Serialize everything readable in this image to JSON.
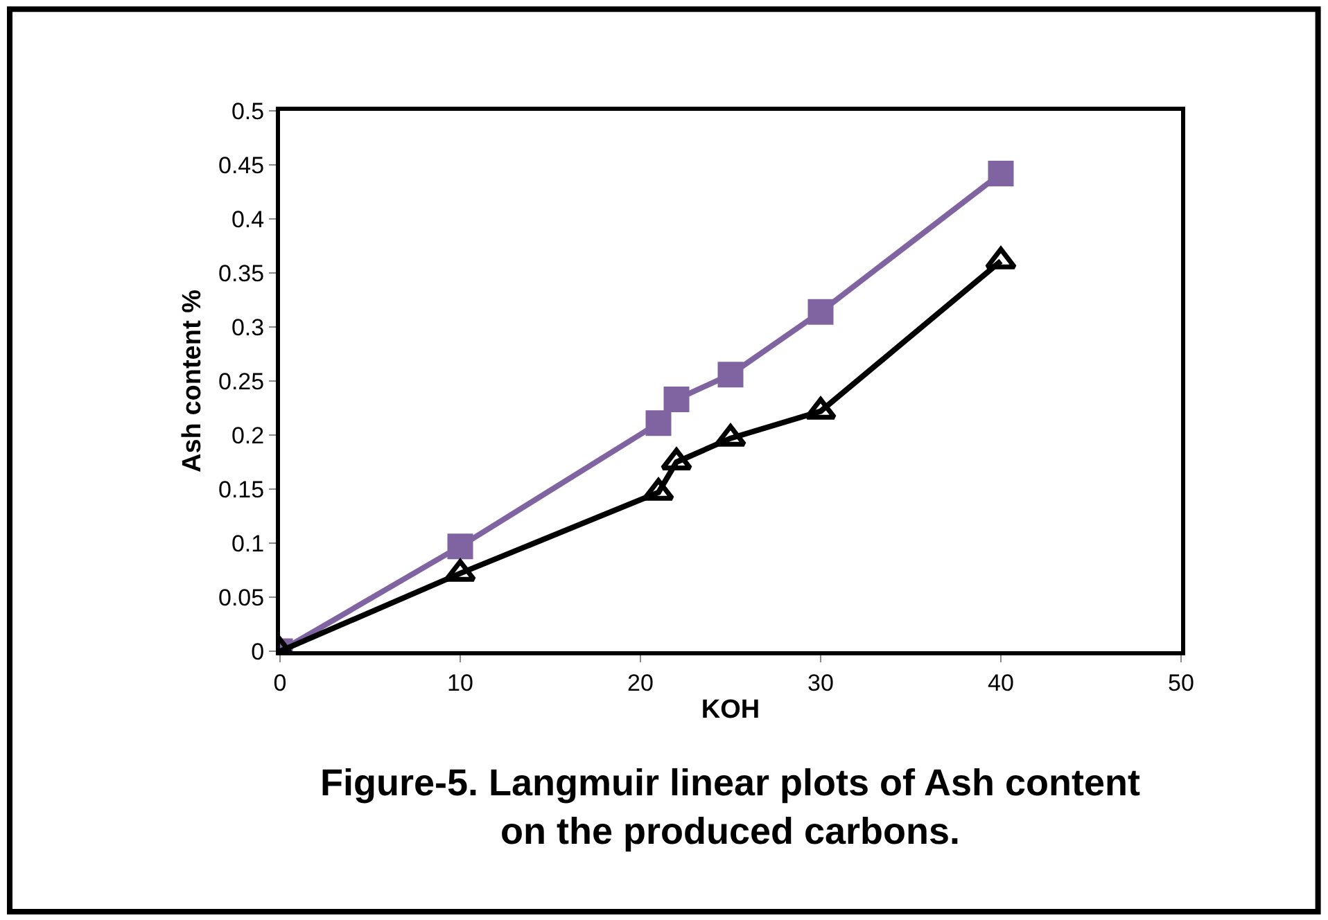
{
  "chart_data": {
    "type": "line",
    "title": "Figure-5. Langmuir linear plots of Ash content on the produced carbons.",
    "xlabel": "KOH",
    "ylabel": "Ash content %",
    "x": [
      0,
      10,
      21,
      22,
      25,
      30,
      40
    ],
    "series": [
      {
        "color": "#8064a2",
        "marker": "square",
        "values": [
          0,
          0.097,
          0.211,
          0.233,
          0.256,
          0.314,
          0.442
        ]
      },
      {
        "color": "#000000",
        "marker": "triangle",
        "values": [
          0,
          0.072,
          0.147,
          0.175,
          0.197,
          0.222,
          0.361
        ]
      }
    ],
    "xlim": [
      0,
      50
    ],
    "xticks": [
      0,
      10,
      20,
      30,
      40,
      50
    ],
    "ylim": [
      0,
      0.5
    ],
    "yticks": [
      0,
      0.05,
      0.1,
      0.15,
      0.2,
      0.25,
      0.3,
      0.35,
      0.4,
      0.45,
      0.5
    ]
  }
}
